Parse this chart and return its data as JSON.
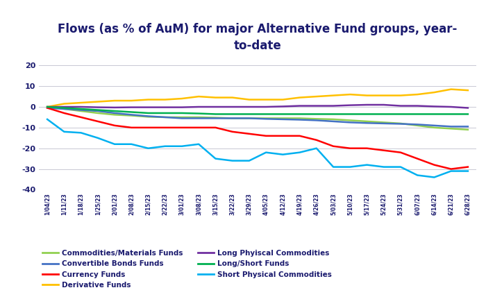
{
  "title": "Flows (as % of AuM) for major Alternative Fund groups, year-\nto-date",
  "ylim": [
    -40,
    25
  ],
  "yticks": [
    -40,
    -30,
    -20,
    -10,
    0,
    10,
    20
  ],
  "background_color": "#ffffff",
  "title_color": "#1a1a6e",
  "title_fontsize": 12,
  "dates": [
    "1/04/23",
    "1/11/23",
    "1/18/23",
    "1/25/23",
    "2/01/23",
    "2/08/23",
    "2/15/23",
    "2/22/23",
    "3/01/23",
    "3/08/23",
    "3/15/23",
    "3/22/23",
    "3/29/23",
    "4/05/23",
    "4/12/23",
    "4/19/23",
    "4/26/23",
    "5/03/23",
    "5/10/23",
    "5/17/23",
    "5/24/23",
    "5/31/23",
    "6/07/23",
    "6/14/23",
    "6/21/23",
    "6/28/23"
  ],
  "series": {
    "Commodities/Materials Funds": {
      "color": "#92d050",
      "data": [
        0.0,
        -1.0,
        -2.0,
        -3.0,
        -3.8,
        -4.2,
        -4.8,
        -5.0,
        -5.0,
        -5.0,
        -5.2,
        -5.5,
        -5.5,
        -5.5,
        -5.5,
        -5.5,
        -5.8,
        -6.0,
        -6.5,
        -7.0,
        -7.5,
        -8.0,
        -9.0,
        -10.0,
        -10.5,
        -11.0
      ]
    },
    "Convertible Bonds Funds": {
      "color": "#4472c4",
      "data": [
        -0.5,
        -1.0,
        -1.5,
        -2.0,
        -3.0,
        -3.8,
        -4.5,
        -5.0,
        -5.5,
        -5.5,
        -5.5,
        -5.5,
        -5.5,
        -5.8,
        -6.0,
        -6.2,
        -6.5,
        -7.0,
        -7.5,
        -7.8,
        -8.0,
        -8.2,
        -8.5,
        -9.0,
        -9.5,
        -9.5
      ]
    },
    "Currency Funds": {
      "color": "#ff0000",
      "data": [
        -0.5,
        -3.0,
        -5.0,
        -7.0,
        -9.0,
        -10.0,
        -10.0,
        -10.0,
        -10.0,
        -10.0,
        -10.0,
        -12.0,
        -13.0,
        -14.0,
        -14.0,
        -14.0,
        -16.0,
        -19.0,
        -20.0,
        -20.0,
        -21.0,
        -22.0,
        -25.0,
        -28.0,
        -30.0,
        -29.0
      ]
    },
    "Derivative Funds": {
      "color": "#ffc000",
      "data": [
        0.0,
        1.5,
        2.0,
        2.5,
        3.0,
        3.0,
        3.5,
        3.5,
        4.0,
        5.0,
        4.5,
        4.5,
        3.5,
        3.5,
        3.5,
        4.5,
        5.0,
        5.5,
        6.0,
        5.5,
        5.5,
        5.5,
        6.0,
        7.0,
        8.5,
        8.0
      ]
    },
    "Long Phyiscal Commodities": {
      "color": "#7030a0",
      "data": [
        0.0,
        0.0,
        0.0,
        -0.2,
        -0.3,
        -0.2,
        -0.2,
        -0.2,
        -0.2,
        0.0,
        0.0,
        0.0,
        0.0,
        0.0,
        0.2,
        0.5,
        0.5,
        0.5,
        0.8,
        1.0,
        1.0,
        0.5,
        0.5,
        0.2,
        0.0,
        -0.5
      ]
    },
    "Long/Short Funds": {
      "color": "#00b050",
      "data": [
        0.0,
        -0.5,
        -1.0,
        -1.5,
        -2.0,
        -2.5,
        -3.0,
        -3.0,
        -3.0,
        -3.2,
        -3.5,
        -3.5,
        -3.5,
        -3.5,
        -3.5,
        -3.5,
        -3.5,
        -3.5,
        -3.5,
        -3.5,
        -3.5,
        -3.5,
        -3.5,
        -3.5,
        -3.5,
        -3.5
      ]
    },
    "Short Physical Commodities": {
      "color": "#00b0f0",
      "data": [
        -6.0,
        -12.0,
        -12.5,
        -15.0,
        -18.0,
        -18.0,
        -20.0,
        -19.0,
        -19.0,
        -18.0,
        -25.0,
        -26.0,
        -26.0,
        -22.0,
        -23.0,
        -22.0,
        -20.0,
        -29.0,
        -29.0,
        -28.0,
        -29.0,
        -29.0,
        -33.0,
        -34.0,
        -31.0,
        -31.0
      ]
    }
  },
  "legend_order": [
    "Commodities/Materials Funds",
    "Convertible Bonds Funds",
    "Currency Funds",
    "Derivative Funds",
    "Long Phyiscal Commodities",
    "Long/Short Funds",
    "Short Physical Commodities"
  ],
  "grid_color": "#c8c8d4",
  "line_width": 1.8
}
